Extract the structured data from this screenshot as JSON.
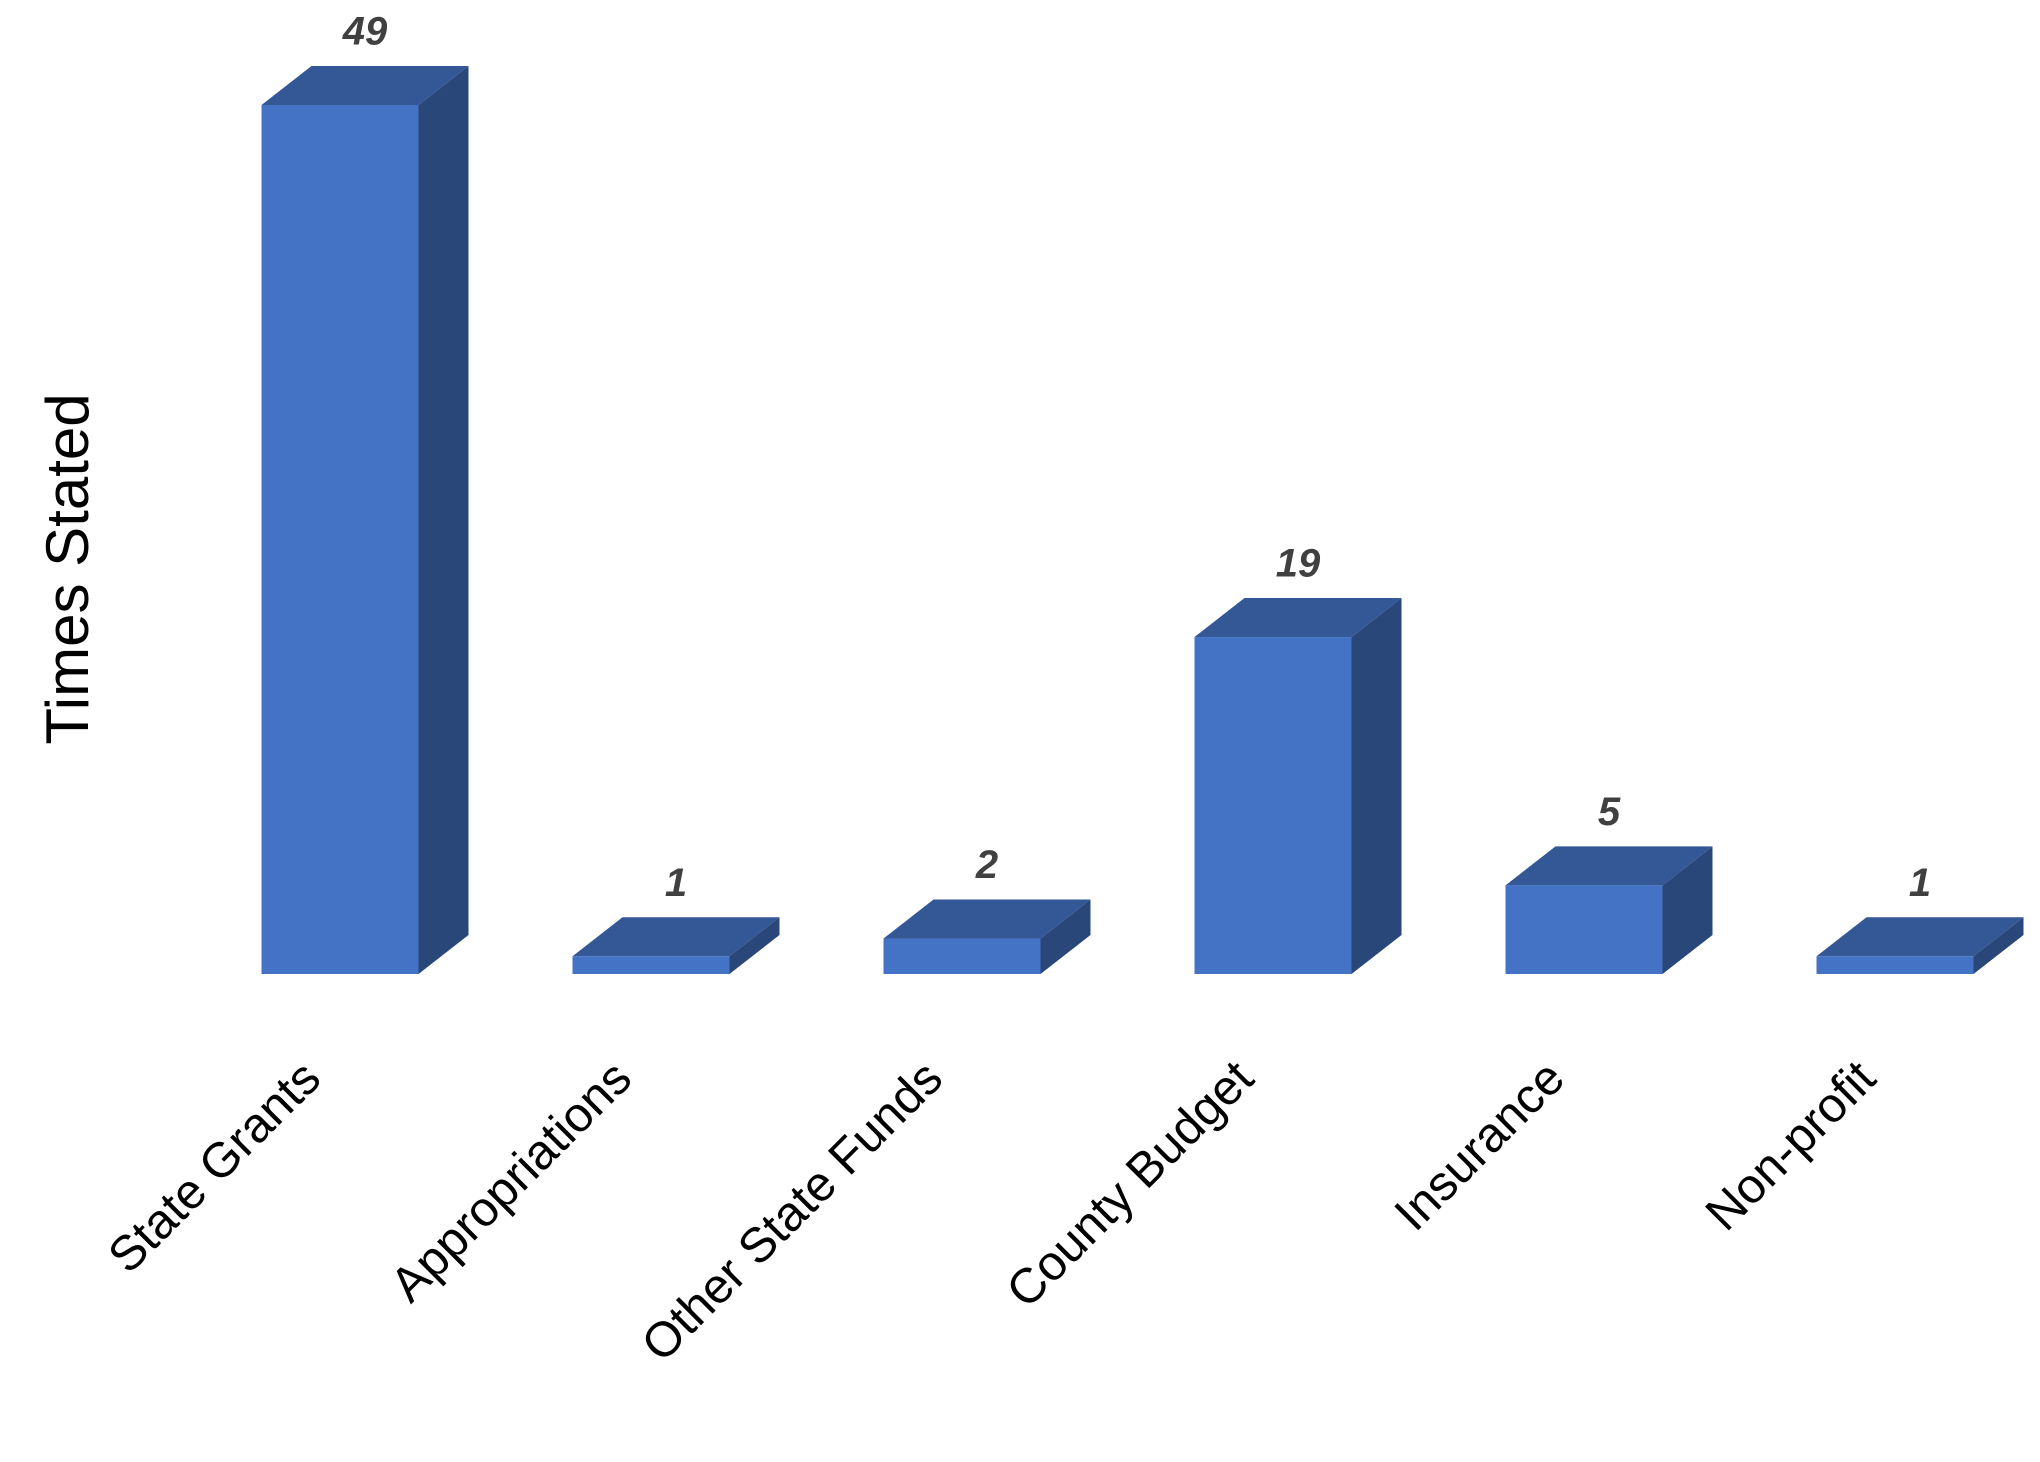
{
  "chart_data": {
    "type": "bar3d",
    "y_label": "Times Stated",
    "categories": [
      "State Grants",
      "Appropriations",
      "Other State Funds",
      "County Budget",
      "Insurance",
      "Non-profit"
    ],
    "values": [
      49,
      1,
      2,
      19,
      5,
      1
    ],
    "color": "#4472c4"
  }
}
